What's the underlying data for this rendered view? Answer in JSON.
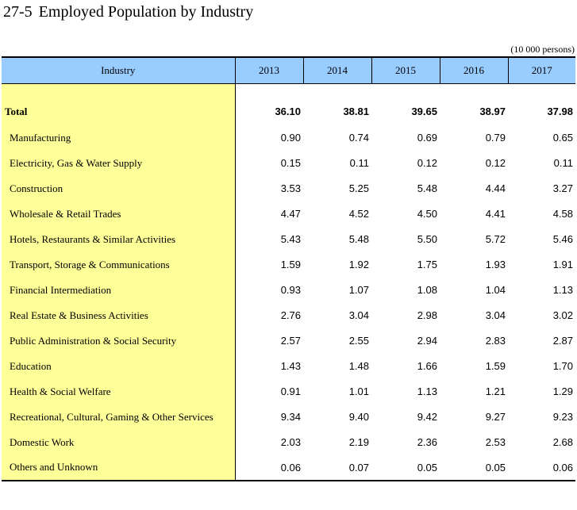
{
  "page": {
    "title_number": "27-5",
    "title_text": "Employed Population by Industry",
    "unit_note": "(10 000 persons)"
  },
  "table": {
    "header": [
      "Industry",
      "2013",
      "2014",
      "2015",
      "2016",
      "2017"
    ],
    "total": {
      "label": "Total",
      "values": [
        "36.10",
        "38.81",
        "39.65",
        "38.97",
        "37.98"
      ]
    },
    "rows": [
      {
        "label": "Manufacturing",
        "values": [
          "0.90",
          "0.74",
          "0.69",
          "0.79",
          "0.65"
        ]
      },
      {
        "label": "Electricity, Gas & Water Supply",
        "values": [
          "0.15",
          "0.11",
          "0.12",
          "0.12",
          "0.11"
        ]
      },
      {
        "label": "Construction",
        "values": [
          "3.53",
          "5.25",
          "5.48",
          "4.44",
          "3.27"
        ]
      },
      {
        "label": "Wholesale & Retail Trades",
        "values": [
          "4.47",
          "4.52",
          "4.50",
          "4.41",
          "4.58"
        ]
      },
      {
        "label": "Hotels, Restaurants & Similar Activities",
        "values": [
          "5.43",
          "5.48",
          "5.50",
          "5.72",
          "5.46"
        ]
      },
      {
        "label": "Transport, Storage & Communications",
        "values": [
          "1.59",
          "1.92",
          "1.75",
          "1.93",
          "1.91"
        ]
      },
      {
        "label": "Financial Intermediation",
        "values": [
          "0.93",
          "1.07",
          "1.08",
          "1.04",
          "1.13"
        ]
      },
      {
        "label": "Real Estate & Business Activities",
        "values": [
          "2.76",
          "3.04",
          "2.98",
          "3.04",
          "3.02"
        ]
      },
      {
        "label": "Public Administration & Social Security",
        "values": [
          "2.57",
          "2.55",
          "2.94",
          "2.83",
          "2.87"
        ]
      },
      {
        "label": "Education",
        "values": [
          "1.43",
          "1.48",
          "1.66",
          "1.59",
          "1.70"
        ]
      },
      {
        "label": "Health & Social Welfare",
        "values": [
          "0.91",
          "1.01",
          "1.13",
          "1.21",
          "1.29"
        ]
      },
      {
        "label": "Recreational, Cultural, Gaming & Other Services",
        "values": [
          "9.34",
          "9.40",
          "9.42",
          "9.27",
          "9.23"
        ]
      },
      {
        "label": "Domestic Work",
        "values": [
          "2.03",
          "2.19",
          "2.36",
          "2.53",
          "2.68"
        ]
      },
      {
        "label": "Others and Unknown",
        "values": [
          "0.06",
          "0.07",
          "0.05",
          "0.05",
          "0.06"
        ]
      }
    ]
  },
  "colors": {
    "header_bg": "#99ccff",
    "industry_col_bg": "#ffff99"
  }
}
